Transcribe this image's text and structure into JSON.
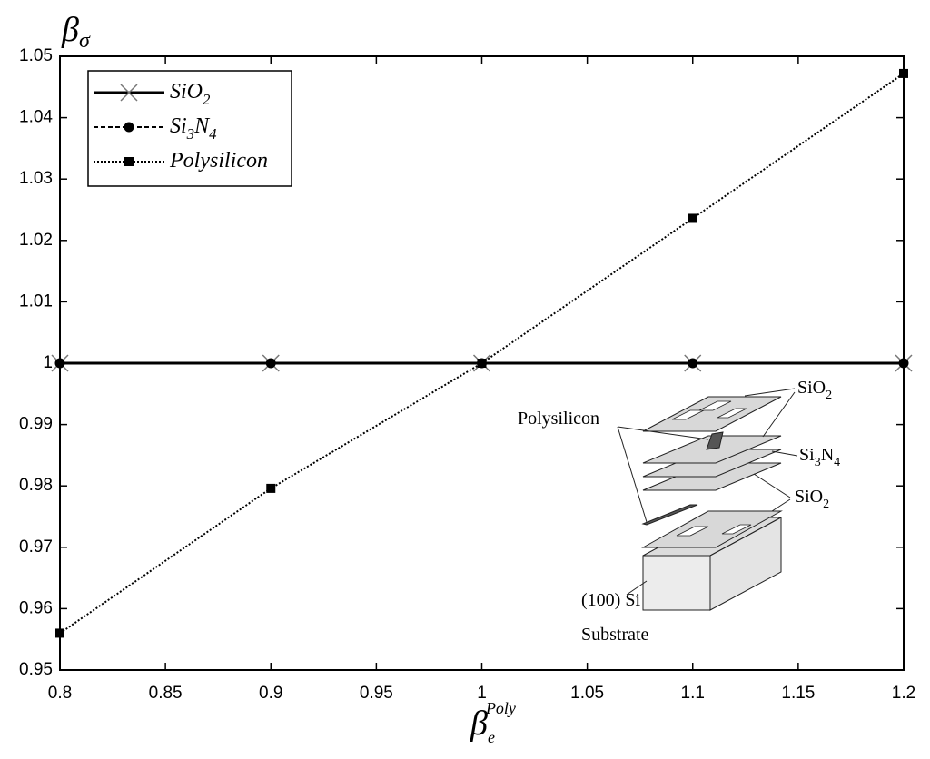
{
  "chart_data": {
    "type": "line",
    "ylabel": {
      "base": "β",
      "sub": "σ"
    },
    "xlabel": {
      "base": "β",
      "sub": "e",
      "sup": "Poly"
    },
    "xlim": [
      0.8,
      1.2
    ],
    "xticks": [
      0.8,
      0.85,
      0.9,
      0.95,
      1,
      1.05,
      1.1,
      1.15,
      1.2
    ],
    "ylim": [
      0.95,
      1.05
    ],
    "yticks": [
      0.95,
      0.96,
      0.97,
      0.98,
      0.99,
      1,
      1.01,
      1.02,
      1.03,
      1.04,
      1.05
    ],
    "grid": false,
    "legend": "upper-left",
    "series": [
      {
        "name": "SiO2",
        "color": "#000000",
        "line": "solid",
        "marker": "x",
        "x": [
          0.8,
          0.9,
          1,
          1.1,
          1.2
        ],
        "values": [
          1,
          1,
          1,
          1,
          1
        ]
      },
      {
        "name": "Si3N4",
        "color": "#000000",
        "line": "dashed",
        "marker": "circle",
        "x": [
          0.8,
          0.9,
          1,
          1.1,
          1.2
        ],
        "values": [
          1,
          1,
          1,
          1,
          1
        ]
      },
      {
        "name": "Polysilicon",
        "color": "#000000",
        "line": "dotted",
        "marker": "square",
        "x": [
          0.8,
          0.9,
          1,
          1.1,
          1.2
        ],
        "values": [
          0.956,
          0.9796,
          1,
          1.0236,
          1.0472
        ]
      }
    ]
  },
  "inset": {
    "labels": [
      "SiO2",
      "Polysilicon",
      "Si3N4",
      "SiO2",
      "(100) Si",
      "Substrate"
    ]
  }
}
